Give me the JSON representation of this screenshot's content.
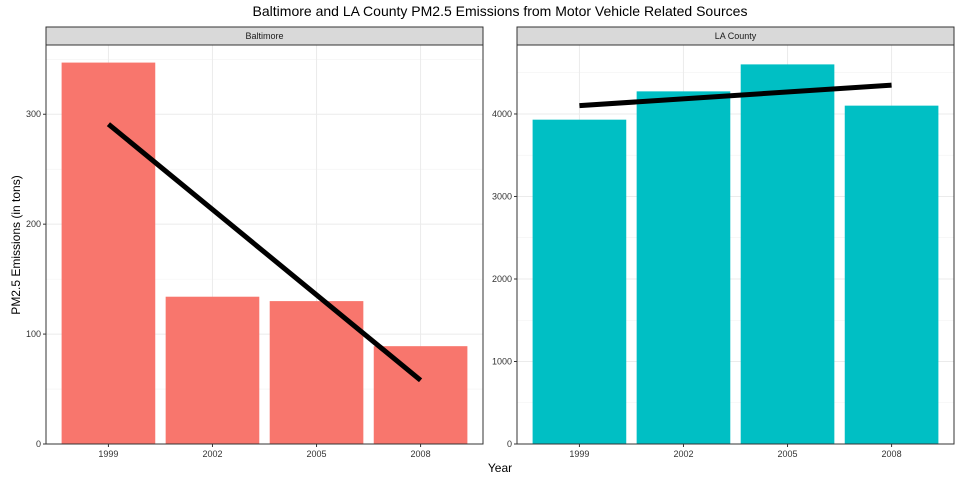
{
  "chart_data": {
    "type": "bar",
    "title": "Baltimore and LA County PM2.5 Emissions from Motor Vehicle Related Sources",
    "xlabel": "Year",
    "ylabel": "PM2.5 Emissions (in tons)",
    "grid": true,
    "legend": "none",
    "panels": [
      {
        "name": "Baltimore",
        "color": "#F8766D",
        "categories": [
          "1999",
          "2002",
          "2005",
          "2008"
        ],
        "values": [
          347,
          134,
          130,
          89
        ],
        "ylim": [
          0,
          363
        ],
        "yticks": [
          0,
          100,
          200,
          300
        ],
        "trend": {
          "start": 291,
          "end": 58
        }
      },
      {
        "name": "LA County",
        "color": "#00BFC4",
        "categories": [
          "1999",
          "2002",
          "2005",
          "2008"
        ],
        "values": [
          3931,
          4274,
          4601,
          4101
        ],
        "ylim": [
          0,
          4836
        ],
        "yticks": [
          0,
          1000,
          2000,
          3000,
          4000
        ],
        "trend": {
          "start": 4101,
          "end": 4349
        }
      }
    ]
  }
}
